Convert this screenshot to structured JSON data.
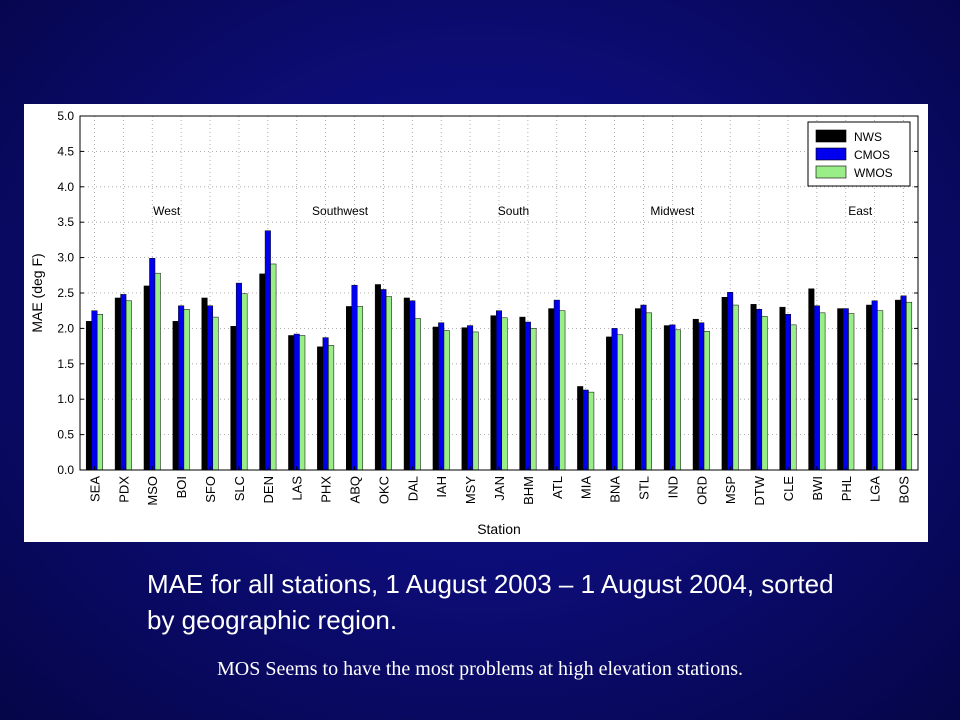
{
  "caption": "MAE for all stations, 1 August 2003 – 1 August 2004, sorted by geographic region.",
  "note": "MOS Seems to have the most problems at high elevation stations.",
  "chart_data": {
    "type": "bar",
    "xlabel": "Station",
    "ylabel": "MAE (deg F)",
    "ylim": [
      0,
      5
    ],
    "yticks": [
      "0.0",
      "0.5",
      "1.0",
      "1.5",
      "2.0",
      "2.5",
      "3.0",
      "3.5",
      "4.0",
      "4.5",
      "5.0"
    ],
    "legend_position": "top-right",
    "categories": [
      "SEA",
      "PDX",
      "MSO",
      "BOI",
      "SFO",
      "SLC",
      "DEN",
      "LAS",
      "PHX",
      "ABQ",
      "OKC",
      "DAL",
      "IAH",
      "MSY",
      "JAN",
      "BHM",
      "ATL",
      "MIA",
      "BNA",
      "STL",
      "IND",
      "ORD",
      "MSP",
      "DTW",
      "CLE",
      "BWI",
      "PHL",
      "LGA",
      "BOS"
    ],
    "regions": [
      {
        "label": "West",
        "center_index": 2.5
      },
      {
        "label": "Southwest",
        "center_index": 8.5
      },
      {
        "label": "South",
        "center_index": 14.5
      },
      {
        "label": "Midwest",
        "center_index": 20.0
      },
      {
        "label": "East",
        "center_index": 26.5
      }
    ],
    "series": [
      {
        "name": "NWS",
        "color": "#000000",
        "values": [
          2.1,
          2.43,
          2.6,
          2.1,
          2.43,
          2.03,
          2.77,
          1.9,
          1.74,
          2.31,
          2.62,
          2.43,
          2.02,
          2.01,
          2.18,
          2.16,
          2.28,
          1.18,
          1.88,
          2.28,
          2.04,
          2.13,
          2.44,
          2.34,
          2.3,
          2.56,
          2.28,
          2.33,
          2.4
        ]
      },
      {
        "name": "CMOS",
        "color": "#0000ee",
        "values": [
          2.25,
          2.48,
          2.99,
          2.32,
          2.32,
          2.64,
          3.38,
          1.92,
          1.87,
          2.61,
          2.55,
          2.39,
          2.08,
          2.04,
          2.25,
          2.09,
          2.4,
          1.13,
          2.0,
          2.33,
          2.05,
          2.08,
          2.51,
          2.27,
          2.2,
          2.32,
          2.28,
          2.39,
          2.46
        ]
      },
      {
        "name": "WMOS",
        "color": "#99ee88",
        "values": [
          2.2,
          2.39,
          2.78,
          2.27,
          2.16,
          2.49,
          2.91,
          1.9,
          1.76,
          2.31,
          2.45,
          2.14,
          1.97,
          1.95,
          2.15,
          2.0,
          2.25,
          1.1,
          1.91,
          2.22,
          1.98,
          1.96,
          2.33,
          2.17,
          2.05,
          2.22,
          2.21,
          2.25,
          2.37
        ]
      }
    ]
  }
}
